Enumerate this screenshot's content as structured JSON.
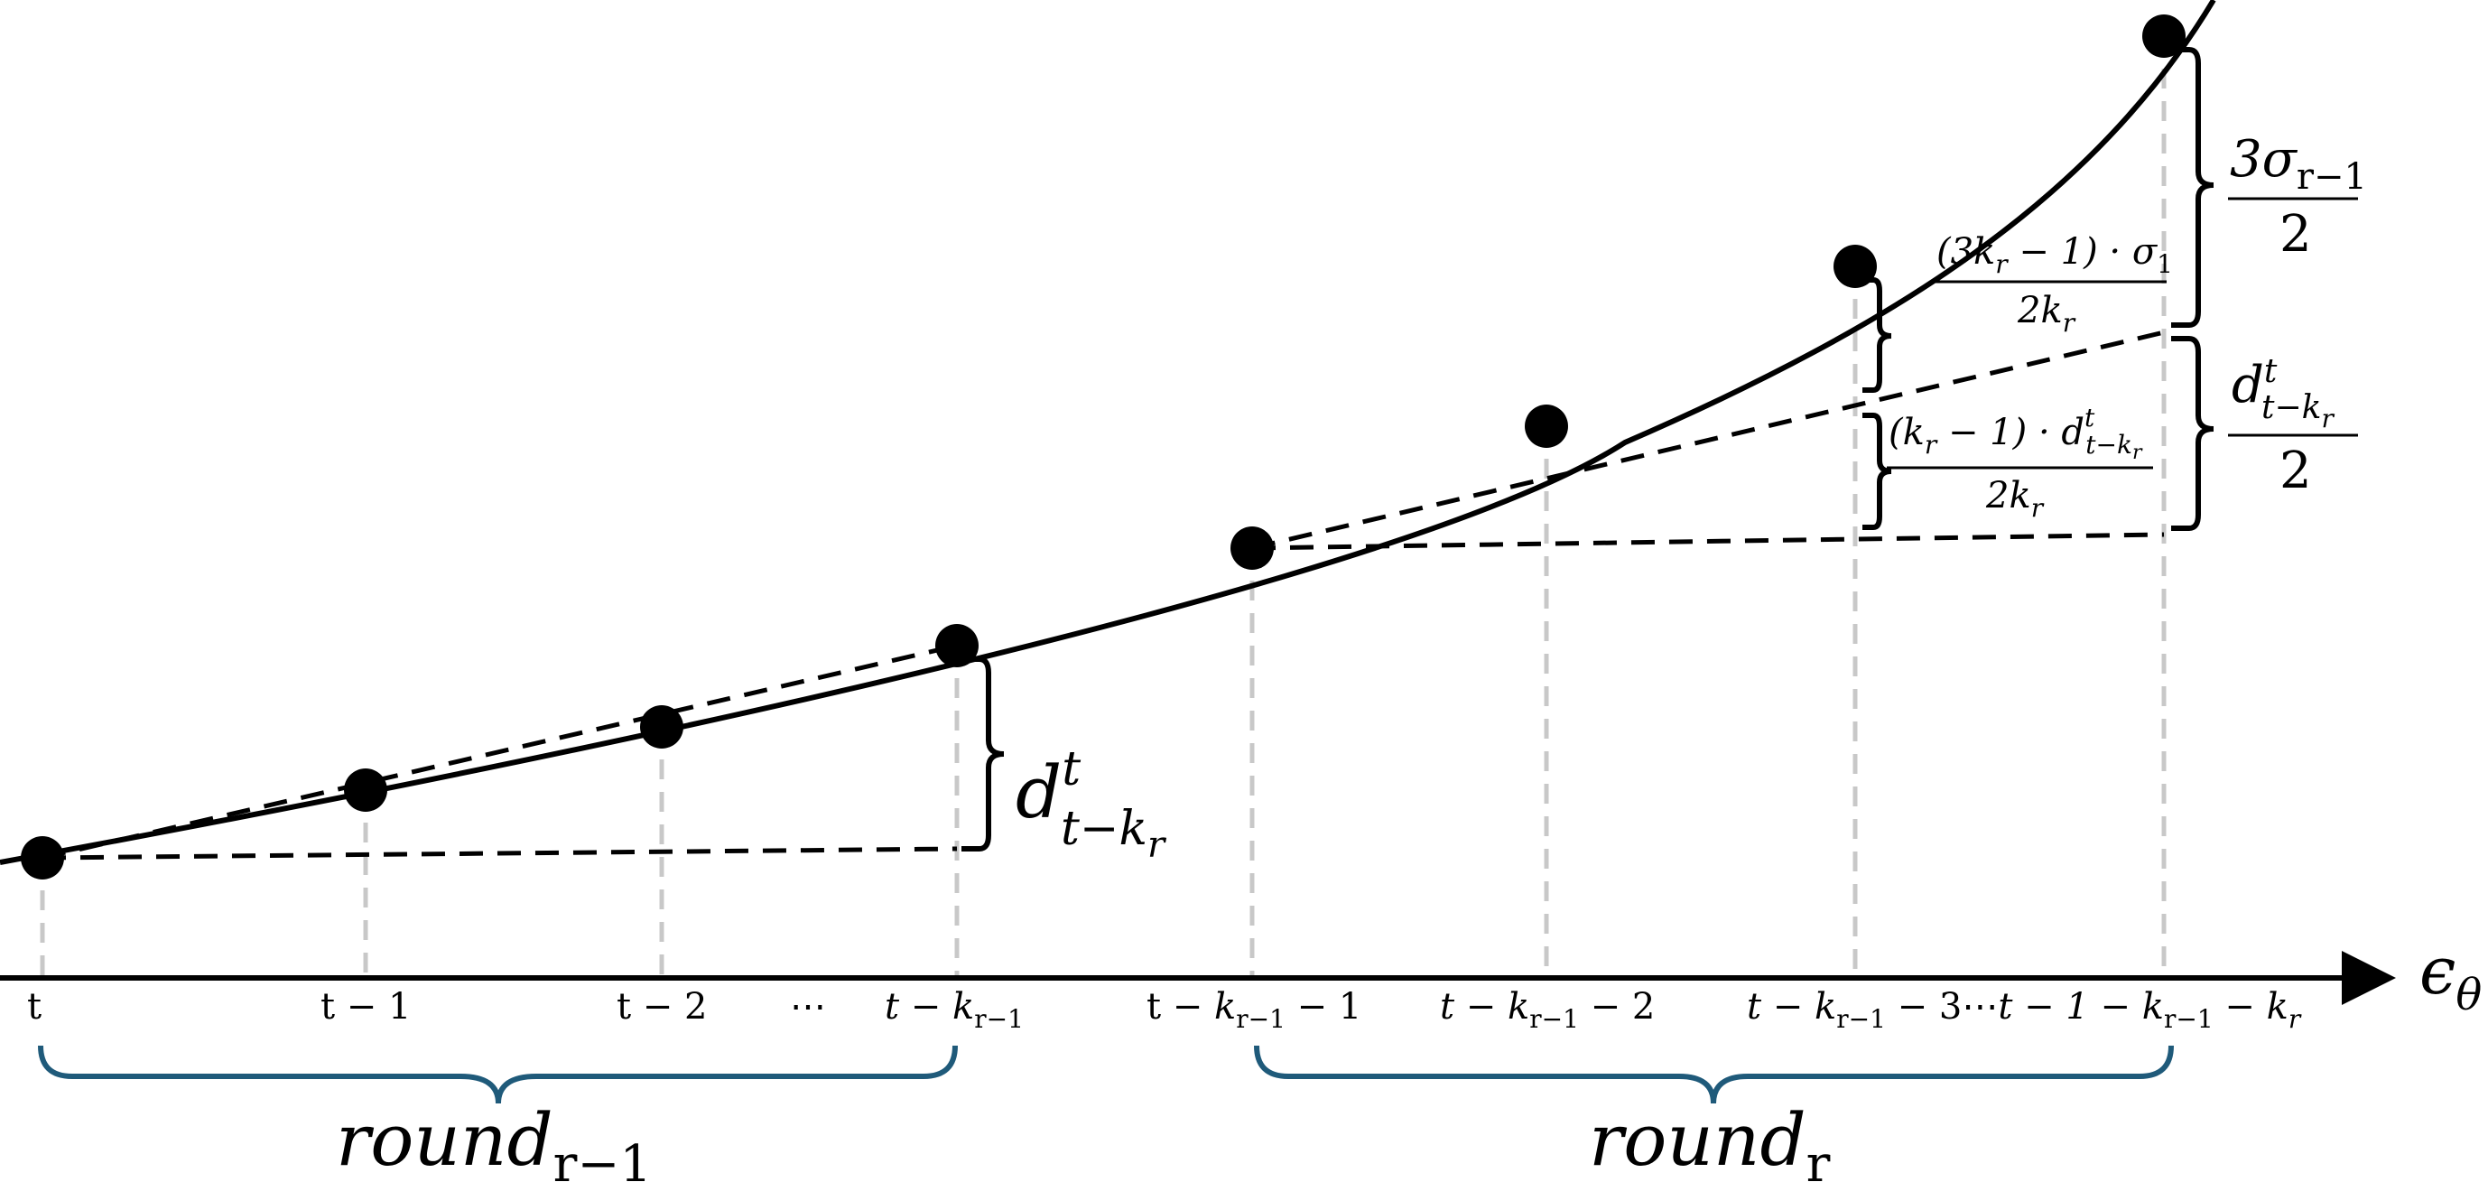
{
  "axis": {
    "label": "ϵ",
    "label_sub": "θ"
  },
  "ticks": [
    {
      "parts": [
        {
          "t": "t"
        }
      ]
    },
    {
      "parts": [
        {
          "t": "t − 1"
        }
      ]
    },
    {
      "parts": [
        {
          "t": "t − 2"
        }
      ]
    },
    {
      "parts": [
        {
          "t": "⋯"
        }
      ]
    },
    {
      "parts": [
        {
          "t": "t − ",
          "i": true
        },
        {
          "t": "k",
          "i": true
        },
        {
          "t": "r−1",
          "sub": true
        }
      ]
    },
    {
      "parts": [
        {
          "t": "t − "
        },
        {
          "t": "k",
          "i": true
        },
        {
          "t": "r−1",
          "sub": true
        },
        {
          "t": " − 1"
        }
      ]
    },
    {
      "parts": [
        {
          "t": "t − k",
          "i": true
        },
        {
          "t": "r−1",
          "sub": true
        },
        {
          "t": " − 2"
        }
      ]
    },
    {
      "parts": [
        {
          "t": "t − k",
          "i": true
        },
        {
          "t": "r−1",
          "sub": true
        },
        {
          "t": " − 3⋯"
        },
        {
          "t": "t − 1 − k",
          "i": true
        },
        {
          "t": "r−1",
          "sub": true
        },
        {
          "t": " − "
        },
        {
          "t": "k",
          "i": true
        },
        {
          "t": "r",
          "sub": true,
          "i": true
        }
      ]
    }
  ],
  "rounds": [
    {
      "base": "round",
      "sub": "r−1"
    },
    {
      "base": "round",
      "sub": "r"
    }
  ],
  "annotations": {
    "d_left": {
      "base": "d",
      "sup": "t",
      "sub": "t−k",
      "subsub": "r"
    },
    "three_sigma": {
      "num": "3σ",
      "num_sub": "r−1",
      "den": "2"
    },
    "three_k": {
      "num": "(3k",
      "num_sub": "r",
      "num_rest": " − 1) · σ",
      "num_sub2": "1",
      "den": "2k",
      "den_sub": "r"
    },
    "d_half": {
      "num_base": "d",
      "num_sup": "t",
      "num_sub": "t−k",
      "num_subsub": "r",
      "den": "2"
    },
    "k_minus": {
      "num": "(k",
      "num_sub": "r",
      "num_rest": " − 1) · d",
      "num_sup": "t",
      "num_sub2": "t−k",
      "num_subsub": "r",
      "den": "2k",
      "den_sub": "r"
    }
  },
  "colors": {
    "curve": "#000000",
    "guide": "#c8c8c8",
    "brace_round": "#1f5a7a",
    "point": "#000000"
  }
}
